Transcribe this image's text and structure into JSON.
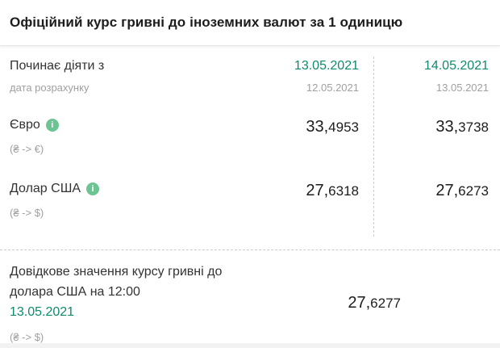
{
  "title": "Офіційний курс гривні до іноземних валют за 1 одиницю",
  "colors": {
    "accent_green": "#0e8a6d",
    "info_icon_green": "#6dc493"
  },
  "icons": {
    "info": "i"
  },
  "header": {
    "label": "Починає діяти з",
    "sublabel": "дата розрахунку",
    "columns": [
      {
        "effective_date": "13.05.2021",
        "calculation_date": "12.05.2021"
      },
      {
        "effective_date": "14.05.2021",
        "calculation_date": "13.05.2021"
      }
    ]
  },
  "rows": [
    {
      "name": "Євро",
      "pair": "(₴ -> €)",
      "values": [
        {
          "int": "33,",
          "dec": "4953"
        },
        {
          "int": "33,",
          "dec": "3738"
        }
      ]
    },
    {
      "name": "Долар США",
      "pair": "(₴ -> $)",
      "values": [
        {
          "int": "27,",
          "dec": "6318"
        },
        {
          "int": "27,",
          "dec": "6273"
        }
      ]
    }
  ],
  "reference": {
    "title": "Довідкове значення курсу гривні до долара США на 12:00",
    "date": "13.05.2021",
    "pair": "(₴ -> $)",
    "value": {
      "int": "27,",
      "dec": "6277"
    }
  }
}
